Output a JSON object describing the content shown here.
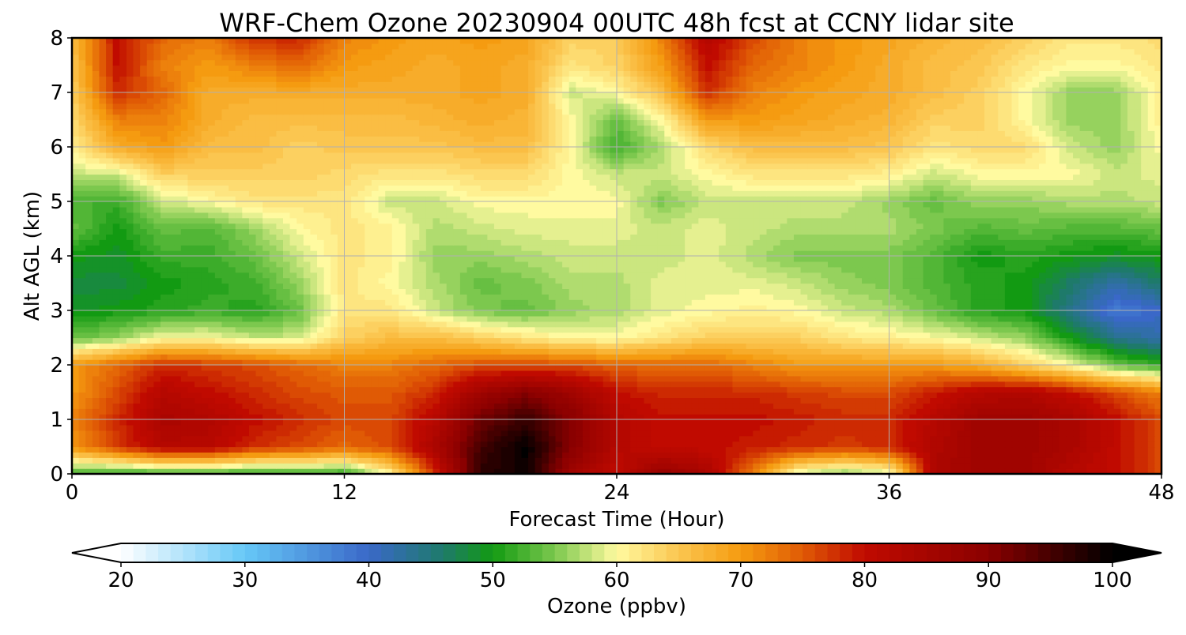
{
  "chart_data": {
    "type": "heatmap",
    "title": "WRF-Chem Ozone  20230904 00UTC 48h fcst at CCNY lidar site",
    "xlabel": "Forecast Time (Hour)",
    "ylabel": "Alt AGL (km)",
    "xlim": [
      0,
      48
    ],
    "ylim": [
      0,
      8
    ],
    "xticks": [
      0,
      12,
      24,
      36,
      48
    ],
    "yticks": [
      0,
      1,
      2,
      3,
      4,
      5,
      6,
      7,
      8
    ],
    "grid": true,
    "x": [
      0,
      2,
      4,
      6,
      8,
      10,
      12,
      14,
      16,
      18,
      20,
      22,
      24,
      26,
      28,
      30,
      32,
      34,
      36,
      38,
      40,
      42,
      44,
      46,
      48
    ],
    "y": [
      0,
      0.5,
      1,
      1.5,
      2,
      2.5,
      3,
      3.5,
      4,
      4.5,
      5,
      5.5,
      6,
      6.5,
      7,
      7.5,
      8
    ],
    "z": [
      [
        52,
        51,
        52,
        52,
        51,
        52,
        51,
        60,
        78,
        97,
        99,
        86,
        80,
        88,
        84,
        72,
        58,
        55,
        58,
        84,
        86,
        86,
        82,
        80,
        76
      ],
      [
        70,
        77,
        82,
        82,
        78,
        76,
        74,
        76,
        84,
        95,
        100,
        90,
        82,
        80,
        80,
        79,
        78,
        77,
        78,
        83,
        86,
        86,
        84,
        80,
        76
      ],
      [
        72,
        78,
        84,
        83,
        80,
        78,
        76,
        76,
        82,
        92,
        96,
        90,
        82,
        80,
        80,
        80,
        79,
        78,
        78,
        82,
        86,
        86,
        84,
        80,
        76
      ],
      [
        70,
        76,
        82,
        80,
        78,
        76,
        75,
        75,
        78,
        86,
        90,
        86,
        80,
        78,
        78,
        78,
        77,
        76,
        76,
        79,
        82,
        83,
        80,
        76,
        72
      ],
      [
        70,
        74,
        78,
        77,
        76,
        74,
        72,
        72,
        74,
        76,
        76,
        76,
        74,
        74,
        74,
        72,
        70,
        70,
        70,
        70,
        68,
        64,
        60,
        54,
        52
      ],
      [
        54,
        56,
        60,
        60,
        58,
        58,
        64,
        66,
        66,
        64,
        62,
        60,
        60,
        62,
        64,
        64,
        64,
        62,
        61,
        60,
        58,
        56,
        50,
        44,
        42
      ],
      [
        49,
        50,
        51,
        52,
        51,
        54,
        62,
        62,
        58,
        55,
        54,
        56,
        57,
        59,
        60,
        61,
        60,
        58,
        57,
        54,
        51,
        50,
        44,
        38,
        40
      ],
      [
        48,
        48,
        50,
        51,
        52,
        56,
        62,
        60,
        57,
        54,
        55,
        57,
        57,
        59,
        59,
        59,
        58,
        56,
        55,
        53,
        51,
        50,
        46,
        42,
        46
      ],
      [
        50,
        49,
        52,
        52,
        54,
        58,
        62,
        61,
        56,
        56,
        57,
        58,
        58,
        58,
        59,
        57,
        55,
        55,
        55,
        53,
        50,
        51,
        50,
        49,
        50
      ],
      [
        54,
        50,
        54,
        53,
        56,
        60,
        62,
        61,
        57,
        58,
        59,
        59,
        59,
        58,
        59,
        58,
        57,
        57,
        57,
        55,
        53,
        54,
        53,
        53,
        54
      ],
      [
        53,
        52,
        58,
        60,
        62,
        62,
        62,
        58,
        58,
        60,
        60,
        60,
        60,
        55,
        58,
        58,
        58,
        58,
        56,
        54,
        56,
        56,
        57,
        57,
        58
      ],
      [
        58,
        58,
        64,
        64,
        64,
        64,
        63,
        62,
        62,
        63,
        63,
        60,
        58,
        58,
        60,
        62,
        62,
        62,
        61,
        58,
        60,
        60,
        60,
        58,
        59
      ],
      [
        61,
        68,
        70,
        66,
        66,
        64,
        65,
        65,
        65,
        66,
        66,
        60,
        52,
        57,
        63,
        66,
        66,
        66,
        65,
        62,
        63,
        63,
        58,
        56,
        60
      ],
      [
        63,
        72,
        72,
        68,
        66,
        66,
        66,
        66,
        67,
        68,
        67,
        60,
        54,
        60,
        70,
        70,
        69,
        68,
        67,
        64,
        64,
        60,
        56,
        56,
        61
      ],
      [
        64,
        78,
        74,
        68,
        68,
        68,
        68,
        68,
        68,
        69,
        68,
        58,
        60,
        66,
        78,
        72,
        70,
        69,
        68,
        66,
        64,
        60,
        56,
        56,
        61
      ],
      [
        65,
        80,
        72,
        70,
        72,
        74,
        70,
        69,
        68,
        69,
        68,
        62,
        64,
        70,
        80,
        74,
        72,
        70,
        68,
        66,
        65,
        62,
        60,
        60,
        62
      ],
      [
        66,
        80,
        74,
        72,
        78,
        78,
        72,
        70,
        69,
        70,
        69,
        64,
        64,
        72,
        82,
        76,
        72,
        70,
        69,
        67,
        66,
        64,
        62,
        62,
        63
      ]
    ],
    "colorbar": {
      "label": "Ozone  (ppbv)",
      "min": 20,
      "max": 100,
      "ticks": [
        20,
        30,
        40,
        50,
        60,
        70,
        80,
        90,
        100
      ],
      "extend": "both",
      "stops": [
        {
          "v": 20,
          "c": "#ffffff"
        },
        {
          "v": 30,
          "c": "#66c8f7"
        },
        {
          "v": 40,
          "c": "#3a68c8"
        },
        {
          "v": 46,
          "c": "#1e7a6a"
        },
        {
          "v": 50,
          "c": "#129a12"
        },
        {
          "v": 55,
          "c": "#7cc84e"
        },
        {
          "v": 60,
          "c": "#fffaa0"
        },
        {
          "v": 65,
          "c": "#fbc650"
        },
        {
          "v": 70,
          "c": "#f59b10"
        },
        {
          "v": 75,
          "c": "#e05a05"
        },
        {
          "v": 80,
          "c": "#c00a00"
        },
        {
          "v": 90,
          "c": "#8a0000"
        },
        {
          "v": 100,
          "c": "#000000"
        }
      ]
    }
  }
}
